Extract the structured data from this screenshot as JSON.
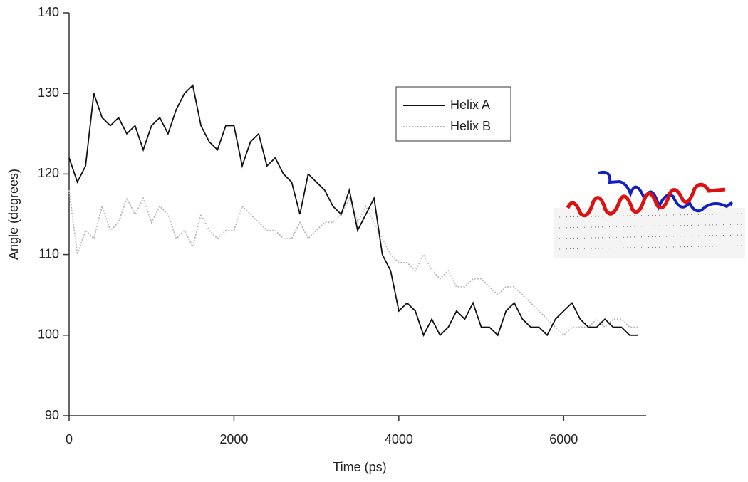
{
  "chart_data": {
    "type": "line",
    "x_label": "Time (ps)",
    "y_label": "Angle (degrees)",
    "x": [
      0,
      100,
      200,
      300,
      400,
      500,
      600,
      700,
      800,
      900,
      1000,
      1100,
      1200,
      1300,
      1400,
      1500,
      1600,
      1700,
      1800,
      1900,
      2000,
      2100,
      2200,
      2300,
      2400,
      2500,
      2600,
      2700,
      2800,
      2900,
      3000,
      3100,
      3200,
      3300,
      3400,
      3500,
      3600,
      3700,
      3800,
      3900,
      4000,
      4100,
      4200,
      4300,
      4400,
      4500,
      4600,
      4700,
      4800,
      4900,
      5000,
      5100,
      5200,
      5300,
      5400,
      5500,
      5600,
      5700,
      5800,
      5900,
      6000,
      6100,
      6200,
      6300,
      6400,
      6500,
      6600,
      6700,
      6800,
      6900
    ],
    "series": [
      {
        "name": "Helix A",
        "color": "#111111",
        "line_style": "solid",
        "values": [
          122,
          119,
          121,
          130,
          127,
          126,
          127,
          125,
          126,
          123,
          126,
          127,
          125,
          128,
          130,
          131,
          126,
          124,
          123,
          126,
          126,
          121,
          124,
          125,
          121,
          122,
          120,
          119,
          115,
          120,
          119,
          118,
          116,
          115,
          118,
          113,
          115,
          117,
          110,
          108,
          103,
          104,
          103,
          100,
          102,
          100,
          101,
          103,
          102,
          104,
          101,
          101,
          100,
          103,
          104,
          102,
          101,
          101,
          100,
          102,
          103,
          104,
          102,
          101,
          101,
          102,
          101,
          101,
          100,
          100
        ]
      },
      {
        "name": "Helix B",
        "color": "#b8b8b8",
        "line_style": "dotted",
        "values": [
          118,
          110,
          113,
          112,
          116,
          113,
          114,
          117,
          115,
          117,
          114,
          116,
          115,
          112,
          113,
          111,
          115,
          113,
          112,
          113,
          113,
          116,
          115,
          114,
          113,
          113,
          112,
          112,
          114,
          112,
          113,
          114,
          114,
          115,
          117,
          114,
          116,
          114,
          112,
          110,
          109,
          109,
          108,
          110,
          108,
          107,
          108,
          106,
          106,
          107,
          107,
          106,
          105,
          106,
          106,
          105,
          104,
          103,
          102,
          101,
          100,
          101,
          101,
          101,
          102,
          101,
          102,
          102,
          101,
          101
        ]
      }
    ],
    "xlim": [
      0,
      7000
    ],
    "xticks": [
      0,
      2000,
      4000,
      6000
    ],
    "ylim": [
      90,
      140
    ],
    "yticks": [
      90,
      100,
      110,
      120,
      130,
      140
    ],
    "grid": false
  }
}
